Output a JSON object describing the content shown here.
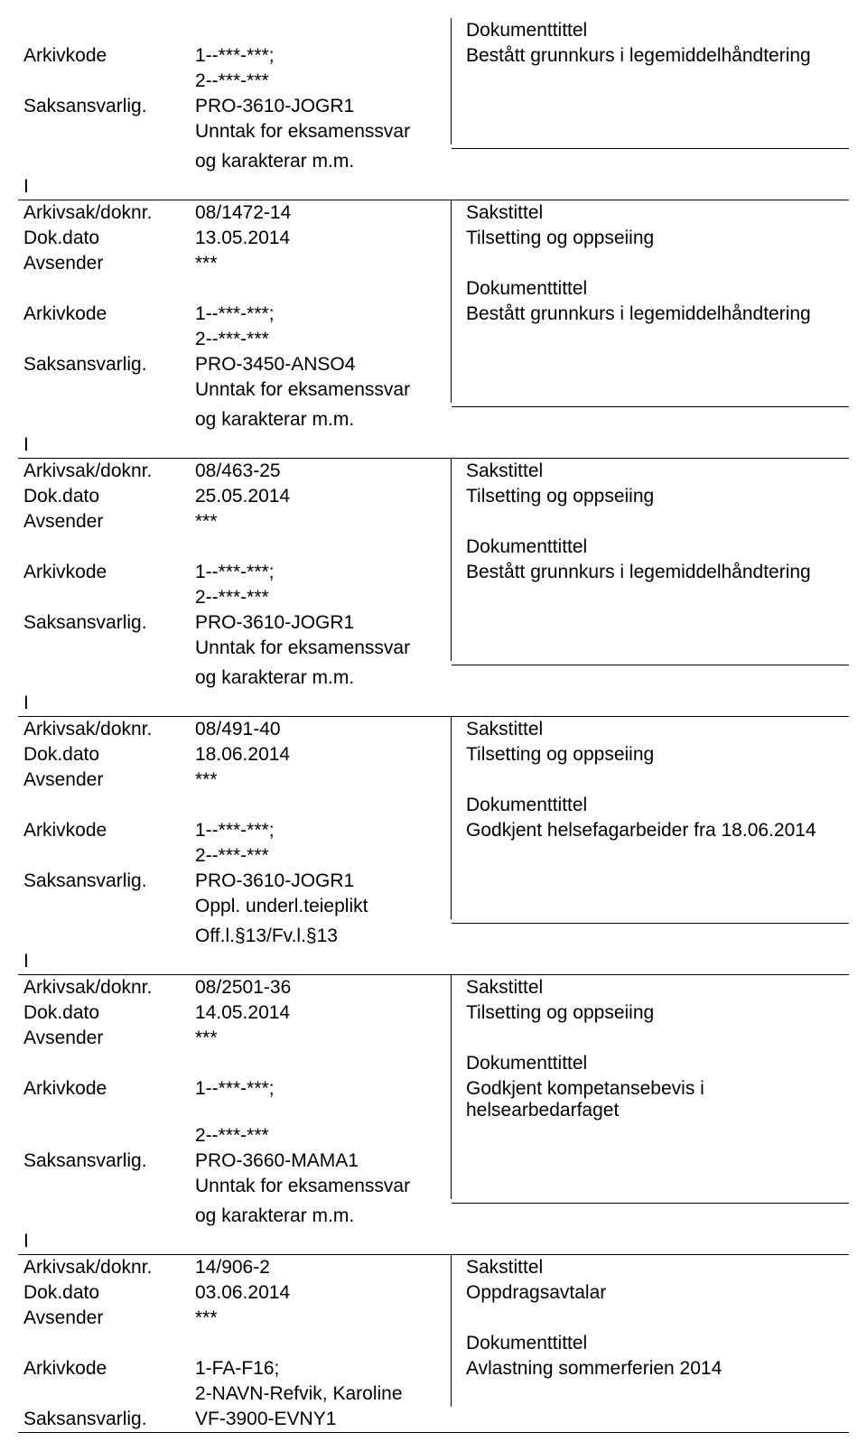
{
  "labels": {
    "arkivkode": "Arkivkode",
    "saksansvarlig": "Saksansvarlig.",
    "arkivsak": "Arkivsak/doknr.",
    "dokdato": "Dok.dato",
    "avsender": "Avsender",
    "dokumenttittel": "Dokumenttittel",
    "sakstittel": "Sakstittel"
  },
  "header": {
    "right_title": "Dokumenttittel",
    "right_text": "Bestått grunnkurs i legemiddelhåndtering",
    "arkivkode_value": "1--***-***;",
    "arkivkode_value2": "2--***-***",
    "saksansvarlig_value": "PRO-3610-JOGR1",
    "extra1": "Unntak for eksamenssvar",
    "extra2": "og karakterar m.m.",
    "i": "I"
  },
  "records": [
    {
      "arkivsak": "08/1472-14",
      "dokdato": "13.05.2014",
      "avsender": "***",
      "arkivkode1": "1--***-***;",
      "arkivkode2": "2--***-***",
      "saksansvarlig": "PRO-3450-ANSO4",
      "extra1": "Unntak for eksamenssvar",
      "extra2": "og karakterar m.m.",
      "sakstittel": "Tilsetting og oppseiing",
      "doktittel": "Bestått grunnkurs i legemiddelhåndtering",
      "i": "I"
    },
    {
      "arkivsak": "08/463-25",
      "dokdato": "25.05.2014",
      "avsender": "***",
      "arkivkode1": "1--***-***;",
      "arkivkode2": "2--***-***",
      "saksansvarlig": "PRO-3610-JOGR1",
      "extra1": "Unntak for eksamenssvar",
      "extra2": "og karakterar m.m.",
      "sakstittel": "Tilsetting og oppseiing",
      "doktittel": "Bestått grunnkurs i legemiddelhåndtering",
      "i": "I"
    },
    {
      "arkivsak": "08/491-40",
      "dokdato": "18.06.2014",
      "avsender": "***",
      "arkivkode1": "1--***-***;",
      "arkivkode2": "2--***-***",
      "saksansvarlig": "PRO-3610-JOGR1",
      "extra1": "Oppl. underl.teieplikt",
      "extra2": "Off.l.§13/Fv.l.§13",
      "sakstittel": "Tilsetting og oppseiing",
      "doktittel": "Godkjent helsefagarbeider fra 18.06.2014",
      "i": "I"
    },
    {
      "arkivsak": "08/2501-36",
      "dokdato": "14.05.2014",
      "avsender": "***",
      "arkivkode1": "1--***-***;",
      "arkivkode2": "2--***-***",
      "saksansvarlig": "PRO-3660-MAMA1",
      "extra1": "Unntak for eksamenssvar",
      "extra2": "og karakterar m.m.",
      "sakstittel": "Tilsetting og oppseiing",
      "doktittel": "Godkjent kompetansebevis i helsearbedarfaget",
      "i": "I"
    },
    {
      "arkivsak": "14/906-2",
      "dokdato": "03.06.2014",
      "avsender": "***",
      "arkivkode1": "1-FA-F16;",
      "arkivkode2": "2-NAVN-Refvik, Karoline",
      "saksansvarlig": "VF-3900-EVNY1",
      "extra1": "",
      "extra2": "",
      "sakstittel": "Oppdragsavtalar",
      "doktittel": "Avlastning sommerferien 2014",
      "i": ""
    }
  ]
}
